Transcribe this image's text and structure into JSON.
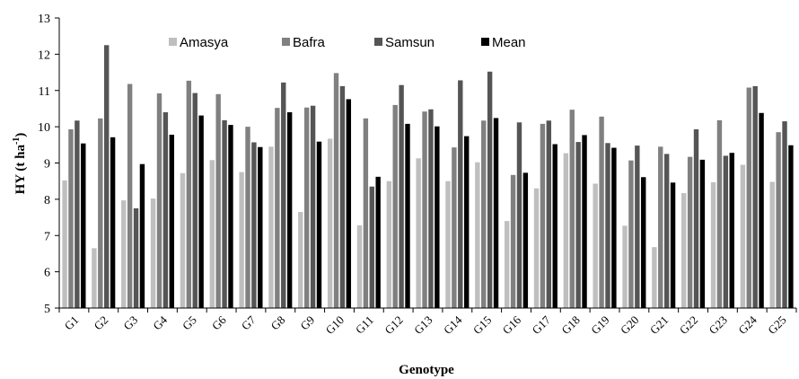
{
  "chart_data": {
    "type": "bar",
    "xlabel": "Genotype",
    "ylabel": "HY (t ha",
    "ylabel_unit_sup": "-1",
    "ylabel_end": ")",
    "ylim": [
      5,
      13
    ],
    "yticks": [
      5,
      6,
      7,
      8,
      9,
      10,
      11,
      12,
      13
    ],
    "legend_position": "top",
    "grid": false,
    "categories": [
      "G1",
      "G2",
      "G3",
      "G4",
      "G5",
      "G6",
      "G7",
      "G8",
      "G9",
      "G10",
      "G11",
      "G12",
      "G13",
      "G14",
      "G15",
      "G16",
      "G17",
      "G18",
      "G19",
      "G20",
      "G21",
      "G22",
      "G23",
      "G24",
      "G25"
    ],
    "series": [
      {
        "name": "Amasya",
        "color": "#bfbfbf",
        "values": [
          8.52,
          6.65,
          7.97,
          8.02,
          8.72,
          9.08,
          8.75,
          9.45,
          7.65,
          9.67,
          7.28,
          8.5,
          9.13,
          8.5,
          9.02,
          7.4,
          8.3,
          9.27,
          8.43,
          7.27,
          6.68,
          8.17,
          8.47,
          8.95,
          8.48
        ]
      },
      {
        "name": "Bafra",
        "color": "#808080",
        "values": [
          9.93,
          10.23,
          11.18,
          10.92,
          11.27,
          10.9,
          10.0,
          10.52,
          10.53,
          11.48,
          10.23,
          10.6,
          10.42,
          9.43,
          10.17,
          8.67,
          10.08,
          10.47,
          10.28,
          9.07,
          9.45,
          9.17,
          10.18,
          11.08,
          9.85
        ]
      },
      {
        "name": "Samsun",
        "color": "#555555",
        "values": [
          10.17,
          12.25,
          7.75,
          10.4,
          10.93,
          10.18,
          9.57,
          11.22,
          10.58,
          11.12,
          8.35,
          11.15,
          10.48,
          11.28,
          11.52,
          10.12,
          10.17,
          9.58,
          9.55,
          9.48,
          9.25,
          9.93,
          9.2,
          11.12,
          10.15
        ]
      },
      {
        "name": "Mean",
        "color": "#000000",
        "values": [
          9.54,
          9.71,
          8.97,
          9.78,
          10.31,
          10.05,
          9.44,
          10.4,
          9.59,
          10.76,
          8.62,
          10.08,
          10.01,
          9.74,
          10.24,
          8.73,
          9.52,
          9.77,
          9.42,
          8.61,
          8.46,
          9.09,
          9.28,
          10.38,
          9.49
        ]
      }
    ]
  }
}
